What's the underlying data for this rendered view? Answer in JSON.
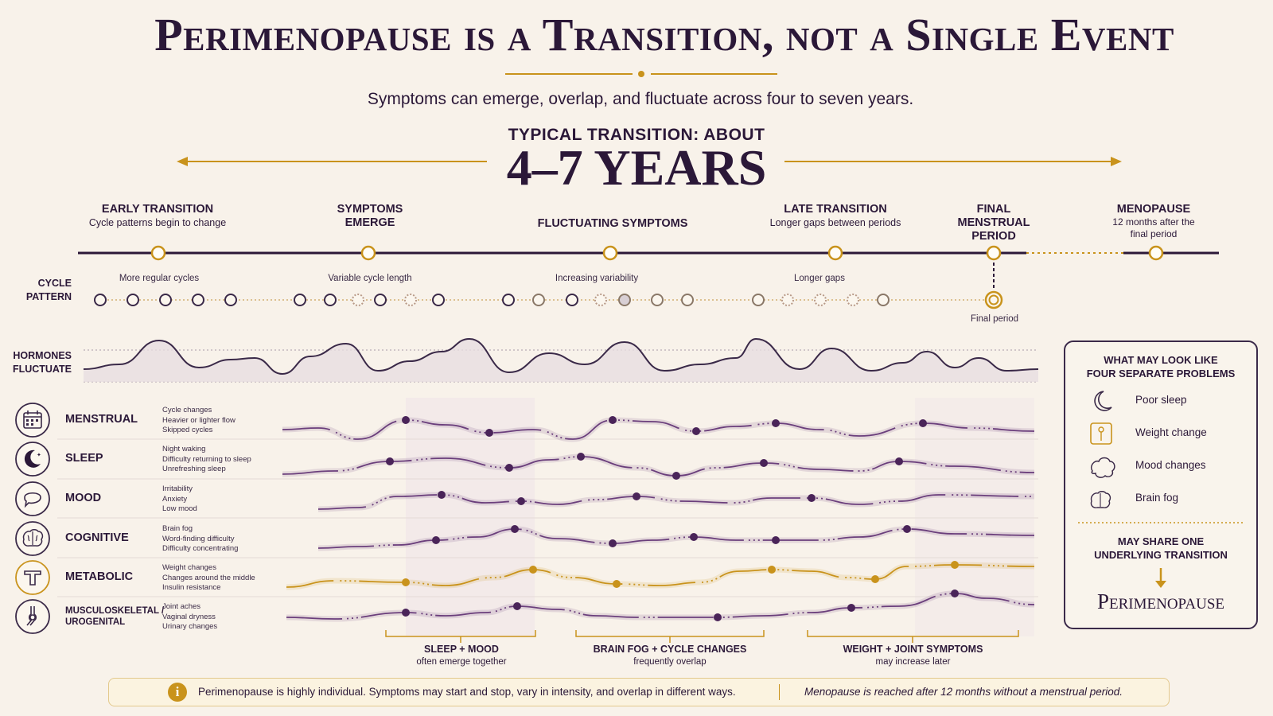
{
  "title": "Perimenopause is a Transition, not a Single Event",
  "subtitle": "Symptoms can emerge, overlap, and fluctuate across four to seven years.",
  "duration": {
    "label": "TYPICAL TRANSITION: ABOUT",
    "value": "4–7 YEARS"
  },
  "stages": [
    {
      "title": "EARLY TRANSITION",
      "desc": "Cycle patterns begin to change"
    },
    {
      "title": "SYMPTOMS EMERGE",
      "desc": ""
    },
    {
      "title": "FLUCTUATING SYMPTOMS",
      "desc": ""
    },
    {
      "title": "LATE TRANSITION",
      "desc": "Longer gaps between periods"
    },
    {
      "title": "FINAL MENSTRUAL PERIOD",
      "desc": ""
    },
    {
      "title": "MENOPAUSE",
      "desc": "12 months after the final period"
    }
  ],
  "cycle_pattern": {
    "label": "CYCLE PATTERN",
    "phases": [
      "More regular cycles",
      "Variable cycle length",
      "Increasing variability",
      "Longer gaps"
    ],
    "final_label": "Final period"
  },
  "hormones_label": "HORMONES FLUCTUATE",
  "symptoms": [
    {
      "name": "MENSTRUAL",
      "icon": "calendar-icon",
      "details": [
        "Cycle changes",
        "Heavier or lighter flow",
        "Skipped cycles"
      ]
    },
    {
      "name": "SLEEP",
      "icon": "moon-icon",
      "details": [
        "Night waking",
        "Difficulty returning to sleep",
        "Unrefreshing sleep"
      ]
    },
    {
      "name": "MOOD",
      "icon": "speech-bubble-icon",
      "details": [
        "Irritability",
        "Anxiety",
        "Low mood"
      ]
    },
    {
      "name": "COGNITIVE",
      "icon": "brain-icon",
      "details": [
        "Brain fog",
        "Word-finding difficulty",
        "Difficulty concentrating"
      ]
    },
    {
      "name": "METABOLIC",
      "icon": "measuring-tape-icon",
      "details": [
        "Weight changes",
        "Changes around the middle",
        "Insulin resistance"
      ]
    },
    {
      "name": "MUSCULOSKELETAL / UROGENITAL",
      "name_lines": [
        "MUSCULOSKELETAL /",
        "UROGENITAL"
      ],
      "icon": "joint-icon",
      "details": [
        "Joint aches",
        "Vaginal dryness",
        "Urinary changes"
      ]
    }
  ],
  "groups": [
    {
      "title": "SLEEP + MOOD",
      "desc": "often emerge together"
    },
    {
      "title": "BRAIN FOG + CYCLE CHANGES",
      "desc": "frequently overlap"
    },
    {
      "title": "WEIGHT + JOINT SYMPTOMS",
      "desc": "may increase later"
    }
  ],
  "panel": {
    "heading": "WHAT MAY LOOK LIKE FOUR SEPARATE PROBLEMS",
    "heading_lines": [
      "WHAT MAY LOOK LIKE",
      "FOUR SEPARATE PROBLEMS"
    ],
    "items": [
      {
        "label": "Poor sleep",
        "icon": "moon-icon"
      },
      {
        "label": "Weight change",
        "icon": "measuring-tape-icon"
      },
      {
        "label": "Mood changes",
        "icon": "cloud-icon"
      },
      {
        "label": "Brain fog",
        "icon": "brain-icon"
      }
    ],
    "shared_label": "MAY SHARE ONE UNDERLYING TRANSITION",
    "shared_lines": [
      "MAY SHARE ONE",
      "UNDERLYING TRANSITION"
    ],
    "conclusion": "Perimenopause"
  },
  "footer": {
    "note": "Perimenopause is highly individual. Symptoms may start and stop, vary in intensity, and overlap in different ways.",
    "definition": "Menopause is reached after 12 months without a menstrual period."
  },
  "colors": {
    "accent": "#c9931c",
    "primary": "#2b1838",
    "purple": "#6b3f7c",
    "background": "#f8f2ea"
  }
}
